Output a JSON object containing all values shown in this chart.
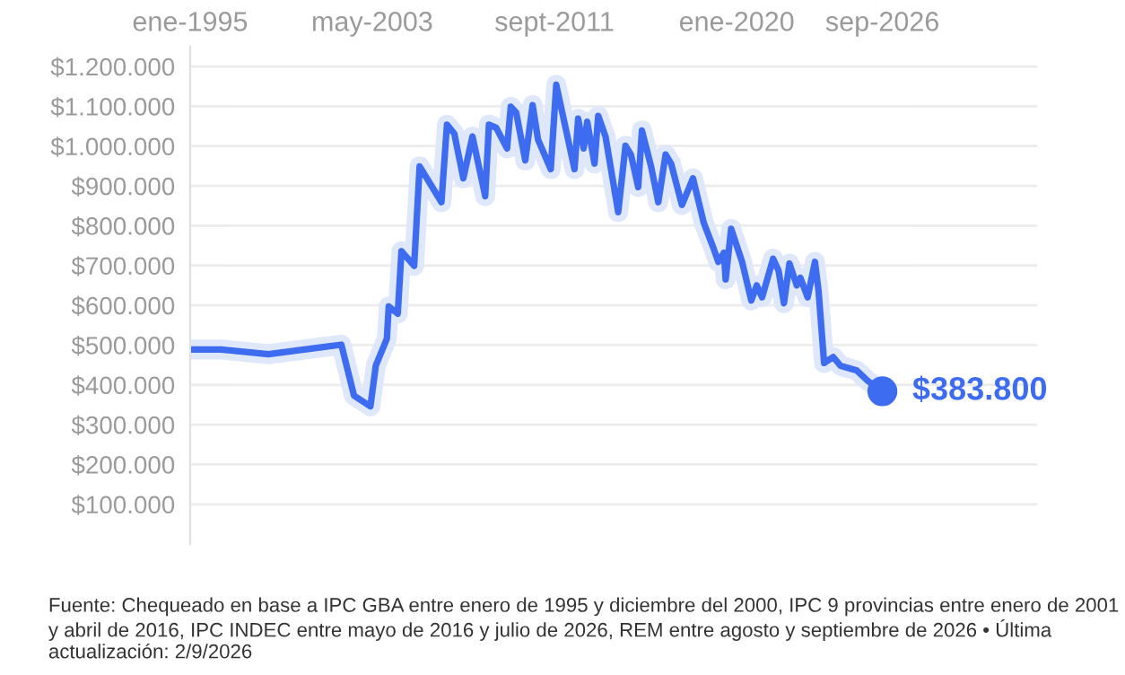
{
  "chart_data": {
    "type": "line",
    "x": [
      "1995-01",
      "1996-06",
      "1998-08",
      "2001-02",
      "2001-12",
      "2002-07",
      "2003-04",
      "2003-07",
      "2004-01",
      "2004-02",
      "2004-07",
      "2004-09",
      "2005-04",
      "2005-07",
      "2006-07",
      "2006-10",
      "2007-02",
      "2007-07",
      "2007-12",
      "2008-07",
      "2008-09",
      "2009-01",
      "2009-07",
      "2009-09",
      "2009-12",
      "2010-05",
      "2010-09",
      "2010-12",
      "2011-07",
      "2011-10",
      "2012-08",
      "2012-10",
      "2013-01",
      "2013-03",
      "2013-07",
      "2013-09",
      "2014-01",
      "2014-08",
      "2014-12",
      "2015-03",
      "2015-07",
      "2015-09",
      "2016-02",
      "2016-06",
      "2016-10",
      "2017-01",
      "2017-04",
      "2017-07",
      "2018-01",
      "2018-07",
      "2018-12",
      "2019-03",
      "2019-06",
      "2019-07",
      "2019-10",
      "2020-04",
      "2020-09",
      "2020-12",
      "2021-03",
      "2021-09",
      "2021-12",
      "2022-03",
      "2022-06",
      "2022-10",
      "2022-12",
      "2023-04",
      "2023-08",
      "2023-10",
      "2024-01",
      "2024-06",
      "2024-10",
      "2025-07",
      "2026-01",
      "2026-09"
    ],
    "series": [
      {
        "color": "#3d6cf0",
        "values": [
          489000,
          489000,
          477000,
          495000,
          501000,
          373000,
          346000,
          449000,
          516000,
          597000,
          579000,
          736000,
          699000,
          949000,
          859000,
          1054000,
          1031000,
          919000,
          1024000,
          874000,
          1054000,
          1046000,
          994000,
          1099000,
          1084000,
          964000,
          1103000,
          1016000,
          942000,
          1154000,
          942000,
          1069000,
          994000,
          1061000,
          956000,
          1076000,
          1024000,
          834000,
          1001000,
          979000,
          897000,
          1039000,
          949000,
          859000,
          979000,
          956000,
          904000,
          852000,
          919000,
          807000,
          747000,
          709000,
          732000,
          665000,
          792000,
          709000,
          612000,
          650000,
          620000,
          717000,
          687000,
          605000,
          705000,
          650000,
          669000,
          620000,
          709000,
          635000,
          455000,
          470000,
          448000,
          436000,
          410000,
          383800
        ]
      }
    ],
    "xlim": [
      "1995-01",
      "2033-10"
    ],
    "xticks": [
      {
        "value": "1995-01",
        "label": "ene-1995"
      },
      {
        "value": "2003-05",
        "label": "may-2003"
      },
      {
        "value": "2011-09",
        "label": "sept-2011"
      },
      {
        "value": "2020-01",
        "label": "ene-2020"
      },
      {
        "value": "2026-09",
        "label": "sep-2026"
      }
    ],
    "ylim": [
      0,
      1250000
    ],
    "yticks": [
      {
        "value": 100000,
        "label": "$100.000"
      },
      {
        "value": 200000,
        "label": "$200.000"
      },
      {
        "value": 300000,
        "label": "$300.000"
      },
      {
        "value": 400000,
        "label": "$400.000"
      },
      {
        "value": 500000,
        "label": "$500.000"
      },
      {
        "value": 600000,
        "label": "$600.000"
      },
      {
        "value": 700000,
        "label": "$700.000"
      },
      {
        "value": 800000,
        "label": "$800.000"
      },
      {
        "value": 900000,
        "label": "$900.000"
      },
      {
        "value": 1000000,
        "label": "$1.000.000"
      },
      {
        "value": 1100000,
        "label": "$1.100.000"
      },
      {
        "value": 1200000,
        "label": "$1.200.000"
      }
    ],
    "grid": "y",
    "marker": "none",
    "line_style": "solid",
    "annotations": [
      {
        "text": "$383.800",
        "x": "2026-09",
        "y": 383800
      },
      "Fuente: Chequeado en base a IPC GBA entre enero de 1995 y diciembre del 2000, IPC 9 provincias entre enero de 2001 y abril de 2016, IPC INDEC entre mayo de 2016 y julio de 2026, REM entre agosto y septiembre de 2026 • Última actualización: 2/9/2026"
    ]
  }
}
